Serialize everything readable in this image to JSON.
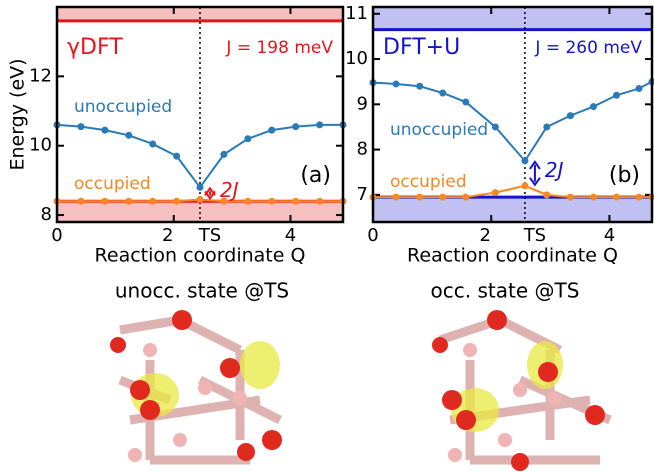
{
  "chart_data": [
    {
      "type": "line",
      "title": "γDFT",
      "subtitle": "J = 198 meV",
      "x_label": "Reaction coordinate Q",
      "y_label": "Energy (eV)",
      "xlim": [
        0,
        4.9
      ],
      "ylim": [
        7.8,
        14
      ],
      "xticks": [
        0,
        2,
        {
          "value": 2.45,
          "label": "TS"
        },
        4
      ],
      "yticks": [
        8,
        10,
        12
      ],
      "x": [
        0,
        0.41,
        0.82,
        1.23,
        1.64,
        2.05,
        2.45,
        2.86,
        3.27,
        3.68,
        4.09,
        4.5,
        4.9
      ],
      "series": [
        {
          "name": "unoccupied",
          "color": "#2a7ab8",
          "values": [
            10.6,
            10.55,
            10.45,
            10.3,
            10.05,
            9.7,
            8.8,
            9.75,
            10.2,
            10.45,
            10.55,
            10.6,
            10.6
          ]
        },
        {
          "name": "occupied",
          "color": "#f7871e",
          "values": [
            8.4,
            8.4,
            8.4,
            8.4,
            8.4,
            8.4,
            8.45,
            8.4,
            8.4,
            8.4,
            8.4,
            8.4,
            8.4
          ]
        }
      ],
      "levels": [
        13.6,
        8.4
      ],
      "level_color": "#e8141c",
      "band_color": "#f7c0c0",
      "panel_label": "(a)",
      "gap_label": "2J"
    },
    {
      "type": "line",
      "title": "DFT+U",
      "subtitle": "J = 260 meV",
      "x_label": "Reaction coordinate Q",
      "xlim": [
        0,
        4.72
      ],
      "ylim": [
        6.4,
        11.15
      ],
      "xticks": [
        0,
        2,
        {
          "value": 2.57,
          "label": "TS"
        },
        4
      ],
      "yticks": [
        7,
        8,
        9,
        10,
        11
      ],
      "x": [
        0,
        0.39,
        0.79,
        1.18,
        1.57,
        2.07,
        2.57,
        2.94,
        3.34,
        3.73,
        4.12,
        4.5,
        4.72
      ],
      "series": [
        {
          "name": "unoccupied",
          "color": "#2a7ab8",
          "values": [
            9.48,
            9.45,
            9.4,
            9.25,
            9.05,
            8.5,
            7.75,
            8.5,
            8.75,
            8.95,
            9.2,
            9.35,
            9.5
          ]
        },
        {
          "name": "occupied",
          "color": "#f7871e",
          "values": [
            6.95,
            6.95,
            6.95,
            6.95,
            6.95,
            7.05,
            7.2,
            7.0,
            6.95,
            6.95,
            6.95,
            6.95,
            6.95
          ]
        }
      ],
      "levels": [
        10.65,
        6.95
      ],
      "level_color": "#1414cc",
      "band_color": "#c0c0f2",
      "panel_label": "(b)",
      "gap_label": "2J"
    }
  ],
  "captions": [
    "unocc. state @TS",
    "occ. state @TS"
  ]
}
